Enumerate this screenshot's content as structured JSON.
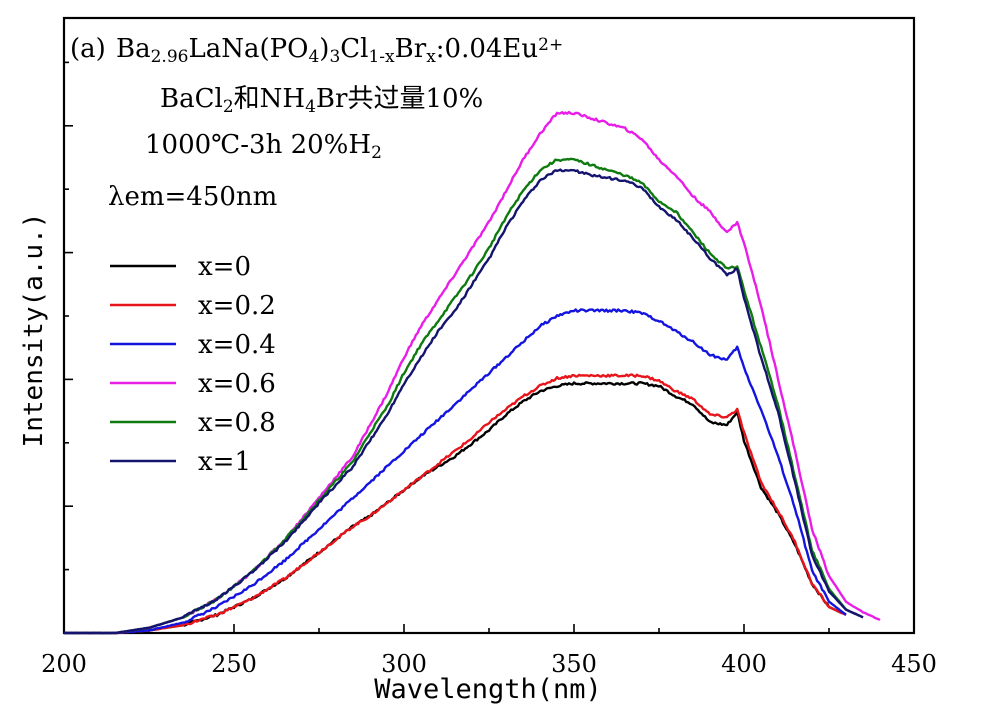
{
  "chart_data": {
    "type": "line",
    "xlabel": "Wavelength(nm)",
    "ylabel": "Intensity(a.u.)",
    "xlim": [
      200,
      450
    ],
    "ylim": [
      0,
      100
    ],
    "xticks": [
      200,
      250,
      300,
      350,
      400,
      450
    ],
    "x_tick_labels": [
      "200",
      "250",
      "300",
      "350",
      "400",
      "450"
    ],
    "annotation": {
      "label": "(a)",
      "formula": {
        "parts": [
          {
            "t": "Ba"
          },
          {
            "t": "2.96",
            "sub": true
          },
          {
            "t": "LaNa(PO"
          },
          {
            "t": "4",
            "sub": true
          },
          {
            "t": ")"
          },
          {
            "t": "3",
            "sub": true
          },
          {
            "t": "Cl"
          },
          {
            "t": "1-x",
            "sub": true
          },
          {
            "t": "Br"
          },
          {
            "t": "x",
            "sub": true
          },
          {
            "t": ":0.04Eu"
          },
          {
            "t": "2+",
            "sup": true
          }
        ]
      },
      "flux": {
        "parts": [
          {
            "t": "BaCl"
          },
          {
            "t": "2",
            "sub": true
          },
          {
            "t": "和NH"
          },
          {
            "t": "4",
            "sub": true
          },
          {
            "t": "Br共过量10%"
          }
        ]
      },
      "condition": {
        "parts": [
          {
            "t": "1000℃-3h  20%H"
          },
          {
            "t": "2",
            "sub": true
          }
        ]
      },
      "emission": "λem=450nm"
    },
    "legend_position": "left",
    "series": [
      {
        "name": "x=0",
        "color": "#000000",
        "x": [
          200,
          215,
          225,
          235,
          245,
          255,
          265,
          275,
          285,
          290,
          295,
          300,
          305,
          310,
          315,
          320,
          325,
          330,
          335,
          340,
          345,
          350,
          355,
          360,
          365,
          370,
          375,
          380,
          385,
          390,
          395,
          398,
          400,
          405,
          410,
          415,
          420,
          425,
          430
        ],
        "y": [
          0,
          0,
          0.5,
          1.5,
          3.5,
          6.5,
          10.5,
          15.5,
          20.5,
          22.5,
          25,
          27.5,
          30,
          32,
          34,
          36.5,
          39,
          42,
          44.5,
          46.5,
          47.5,
          48,
          48,
          48,
          48,
          48,
          47.5,
          45.5,
          44,
          40.5,
          40,
          42.5,
          37,
          28,
          23,
          17,
          9.5,
          5,
          3.5
        ]
      },
      {
        "name": "x=0.2",
        "color": "#e8141b",
        "x": [
          200,
          215,
          225,
          235,
          245,
          255,
          265,
          275,
          285,
          290,
          295,
          300,
          305,
          310,
          315,
          320,
          325,
          330,
          335,
          340,
          345,
          350,
          355,
          360,
          365,
          370,
          375,
          380,
          385,
          390,
          395,
          398,
          400,
          405,
          410,
          415,
          420,
          425,
          430
        ],
        "y": [
          0,
          0,
          0.5,
          1.5,
          3.5,
          6.5,
          10.5,
          15.5,
          20.5,
          22.5,
          25,
          27.5,
          30,
          32.5,
          35,
          37.5,
          40.5,
          43,
          45.5,
          47.5,
          49,
          49.5,
          49.5,
          49.5,
          49.5,
          49.5,
          48.5,
          46.5,
          45,
          42,
          41.5,
          43,
          38.5,
          29,
          23.5,
          17.5,
          9.5,
          5,
          3.5
        ]
      },
      {
        "name": "x=0.4",
        "color": "#1414e0",
        "x": [
          200,
          215,
          225,
          235,
          245,
          255,
          265,
          275,
          285,
          290,
          300,
          310,
          320,
          330,
          340,
          345,
          350,
          355,
          360,
          365,
          370,
          375,
          380,
          385,
          390,
          395,
          398,
          400,
          405,
          410,
          415,
          420,
          425,
          430
        ],
        "y": [
          0,
          0,
          0.5,
          2,
          5,
          9,
          14,
          20,
          26,
          29,
          35,
          41,
          47,
          53,
          59,
          61,
          62,
          62,
          62,
          62,
          61.5,
          60,
          58,
          56,
          53.5,
          52.5,
          55,
          51,
          43,
          34,
          24,
          12,
          6,
          3.5
        ]
      },
      {
        "name": "x=0.6",
        "color": "#e81ee8",
        "x": [
          200,
          215,
          225,
          235,
          245,
          255,
          265,
          275,
          285,
          290,
          295,
          300,
          305,
          310,
          315,
          320,
          325,
          330,
          335,
          340,
          345,
          350,
          355,
          360,
          365,
          370,
          375,
          380,
          385,
          390,
          395,
          398,
          400,
          405,
          410,
          415,
          420,
          425,
          430,
          435,
          440
        ],
        "y": [
          0,
          0,
          1,
          3,
          6.5,
          11.5,
          18,
          26,
          34,
          40,
          46,
          53,
          59,
          64,
          69,
          74,
          79,
          85,
          91,
          96,
          100,
          100,
          99,
          98,
          97,
          95,
          91,
          88,
          84,
          81,
          77,
          79,
          75,
          63,
          49,
          35,
          20,
          11,
          6,
          4,
          2.5
        ]
      },
      {
        "name": "x=0.8",
        "color": "#0f7a0f",
        "x": [
          200,
          215,
          225,
          235,
          245,
          255,
          265,
          275,
          285,
          290,
          295,
          300,
          305,
          310,
          315,
          320,
          325,
          330,
          335,
          340,
          345,
          350,
          355,
          360,
          365,
          370,
          375,
          380,
          385,
          390,
          395,
          398,
          400,
          405,
          410,
          415,
          420,
          425,
          430,
          435
        ],
        "y": [
          0,
          0,
          1,
          3,
          6.5,
          11.5,
          18,
          25.5,
          33,
          38.5,
          43.5,
          50,
          55.5,
          60,
          64.5,
          69,
          74,
          80,
          85,
          89,
          91,
          91,
          90,
          89,
          88,
          86.5,
          83,
          81,
          77,
          73,
          70,
          70.5,
          66,
          55,
          44,
          30,
          16,
          8.5,
          4.5,
          3
        ]
      },
      {
        "name": "x=1",
        "color": "#14146e",
        "x": [
          200,
          215,
          225,
          235,
          245,
          255,
          265,
          275,
          285,
          290,
          295,
          300,
          305,
          310,
          315,
          320,
          325,
          330,
          335,
          340,
          345,
          350,
          355,
          360,
          365,
          370,
          375,
          380,
          385,
          390,
          395,
          398,
          400,
          405,
          410,
          415,
          420,
          425,
          430,
          435
        ],
        "y": [
          0,
          0,
          1,
          3,
          6.5,
          11.5,
          17.5,
          25,
          32,
          37,
          42,
          48,
          53,
          58,
          62,
          67,
          72,
          78,
          83,
          87,
          89,
          89,
          88,
          87.5,
          87,
          85.5,
          82,
          79.5,
          76,
          72,
          69,
          70,
          64.5,
          53,
          42.5,
          29,
          15,
          8,
          4.5,
          3
        ]
      }
    ]
  }
}
